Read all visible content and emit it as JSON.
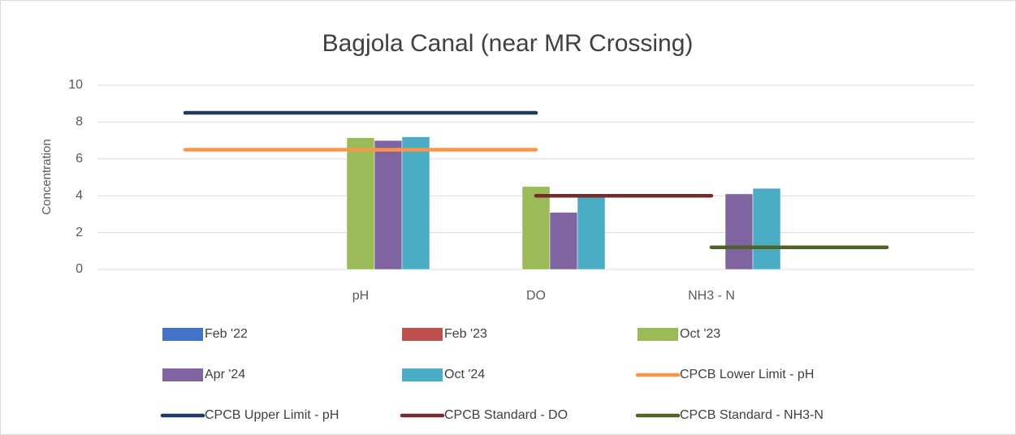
{
  "chart_data": {
    "type": "bar",
    "title": "Bagjola Canal (near MR Crossing)",
    "y_label": "Concentration",
    "categories": [
      null,
      "pH",
      "DO",
      "NH3 - N",
      null
    ],
    "ylim": [
      0,
      10
    ],
    "yticks": [
      0,
      2,
      4,
      6,
      8,
      10
    ],
    "grid": true,
    "series": [
      {
        "name": "Feb '22",
        "type": "bar",
        "color": "#4472c4",
        "values": [
          null,
          null,
          null,
          null,
          null
        ]
      },
      {
        "name": "Feb '23",
        "type": "bar",
        "color": "#c0504d",
        "values": [
          null,
          null,
          null,
          null,
          null
        ]
      },
      {
        "name": "Oct '23",
        "type": "bar",
        "color": "#9bbb59",
        "values": [
          null,
          7.15,
          4.5,
          null,
          null
        ]
      },
      {
        "name": "Apr '24",
        "type": "bar",
        "color": "#8064a2",
        "values": [
          null,
          7.0,
          3.1,
          4.1,
          null
        ]
      },
      {
        "name": "Oct '24",
        "type": "bar",
        "color": "#4bacc6",
        "values": [
          null,
          7.2,
          4.0,
          4.4,
          null
        ]
      },
      {
        "name": "CPCB Lower Limit - pH",
        "type": "line",
        "color": "#f79646",
        "values": [
          6.5,
          6.5,
          6.5,
          null,
          null
        ]
      },
      {
        "name": "CPCB Upper Limit - pH",
        "type": "line",
        "color": "#1f3864",
        "values": [
          8.5,
          8.5,
          8.5,
          null,
          null
        ]
      },
      {
        "name": "CPCB Standard - DO",
        "type": "line",
        "color": "#772c2a",
        "values": [
          null,
          null,
          4,
          4,
          null
        ]
      },
      {
        "name": "CPCB Standard - NH3-N",
        "type": "line",
        "color": "#4f6228",
        "values": [
          null,
          null,
          null,
          1.2,
          1.2
        ]
      }
    ]
  }
}
